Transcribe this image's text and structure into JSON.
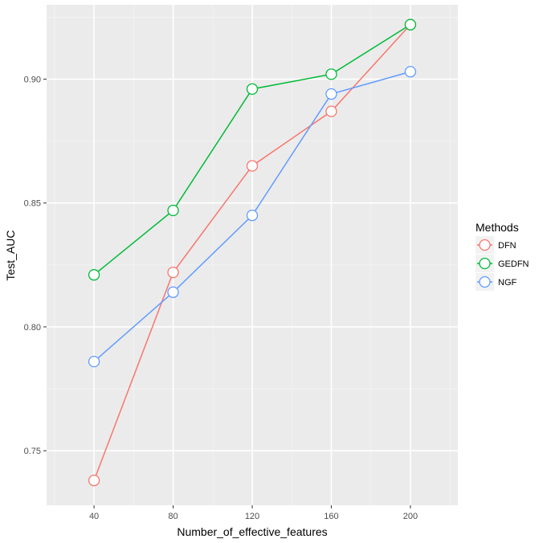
{
  "chart_data": {
    "type": "line",
    "xlabel": "Number_of_effective_features",
    "ylabel": "Test_AUC",
    "x": [
      40,
      80,
      120,
      160,
      200
    ],
    "x_ticks": [
      "40",
      "80",
      "120",
      "160",
      "200"
    ],
    "y_ticks": [
      "0.75",
      "0.80",
      "0.85",
      "0.90"
    ],
    "y_tick_values": [
      0.75,
      0.8,
      0.85,
      0.9
    ],
    "xlim": [
      16,
      224
    ],
    "ylim": [
      0.728,
      0.93
    ],
    "grid": true,
    "legend": {
      "title": "Methods",
      "placement": "right"
    },
    "series": [
      {
        "name": "DFN",
        "color": "#F8766D",
        "values": [
          0.738,
          0.822,
          0.865,
          0.887,
          0.922
        ]
      },
      {
        "name": "GEDFN",
        "color": "#00BA38",
        "values": [
          0.821,
          0.847,
          0.896,
          0.902,
          0.922
        ]
      },
      {
        "name": "NGF",
        "color": "#619CFF",
        "values": [
          0.786,
          0.814,
          0.845,
          0.894,
          0.903
        ]
      }
    ]
  }
}
